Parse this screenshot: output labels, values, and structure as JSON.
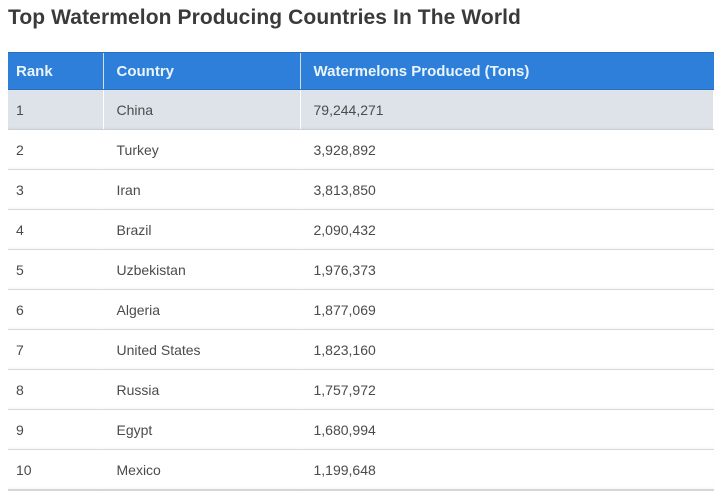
{
  "page": {
    "title": "Top Watermelon Producing Countries In The World"
  },
  "table": {
    "columns": [
      {
        "key": "rank",
        "label": "Rank"
      },
      {
        "key": "country",
        "label": "Country"
      },
      {
        "key": "produced",
        "label": "Watermelons Produced (Tons)"
      }
    ],
    "rows": [
      {
        "rank": "1",
        "country": "China",
        "produced": "79,244,271"
      },
      {
        "rank": "2",
        "country": "Turkey",
        "produced": "3,928,892"
      },
      {
        "rank": "3",
        "country": "Iran",
        "produced": "3,813,850"
      },
      {
        "rank": "4",
        "country": "Brazil",
        "produced": "2,090,432"
      },
      {
        "rank": "5",
        "country": "Uzbekistan",
        "produced": "1,976,373"
      },
      {
        "rank": "6",
        "country": "Algeria",
        "produced": "1,877,069"
      },
      {
        "rank": "7",
        "country": "United States",
        "produced": "1,823,160"
      },
      {
        "rank": "8",
        "country": "Russia",
        "produced": "1,757,972"
      },
      {
        "rank": "9",
        "country": "Egypt",
        "produced": "1,680,994"
      },
      {
        "rank": "10",
        "country": "Mexico",
        "produced": "1,199,648"
      }
    ],
    "highlighted_row_index": 0
  },
  "colors": {
    "header_bg": "#2e7fd9",
    "header_text": "#e9f5fd",
    "highlight_row_bg": "#dde3e8",
    "row_border": "#d9d9d9",
    "body_text": "#4b4b4b",
    "title_text": "#3a3a3a",
    "page_bg": "#ffffff"
  },
  "chart_data": {
    "type": "table",
    "title": "Top Watermelon Producing Countries In The World",
    "columns": [
      "Rank",
      "Country",
      "Watermelons Produced (Tons)"
    ],
    "rows": [
      [
        1,
        "China",
        79244271
      ],
      [
        2,
        "Turkey",
        3928892
      ],
      [
        3,
        "Iran",
        3813850
      ],
      [
        4,
        "Brazil",
        2090432
      ],
      [
        5,
        "Uzbekistan",
        1976373
      ],
      [
        6,
        "Algeria",
        1877069
      ],
      [
        7,
        "United States",
        1823160
      ],
      [
        8,
        "Russia",
        1757972
      ],
      [
        9,
        "Egypt",
        1680994
      ],
      [
        10,
        "Mexico",
        1199648
      ]
    ],
    "categories": [
      "China",
      "Turkey",
      "Iran",
      "Brazil",
      "Uzbekistan",
      "Algeria",
      "United States",
      "Russia",
      "Egypt",
      "Mexico"
    ],
    "values": [
      79244271,
      3928892,
      3813850,
      2090432,
      1976373,
      1877069,
      1823160,
      1757972,
      1680994,
      1199648
    ],
    "value_label": "Watermelons Produced (Tons)",
    "legend_position": "none",
    "grid": false
  }
}
